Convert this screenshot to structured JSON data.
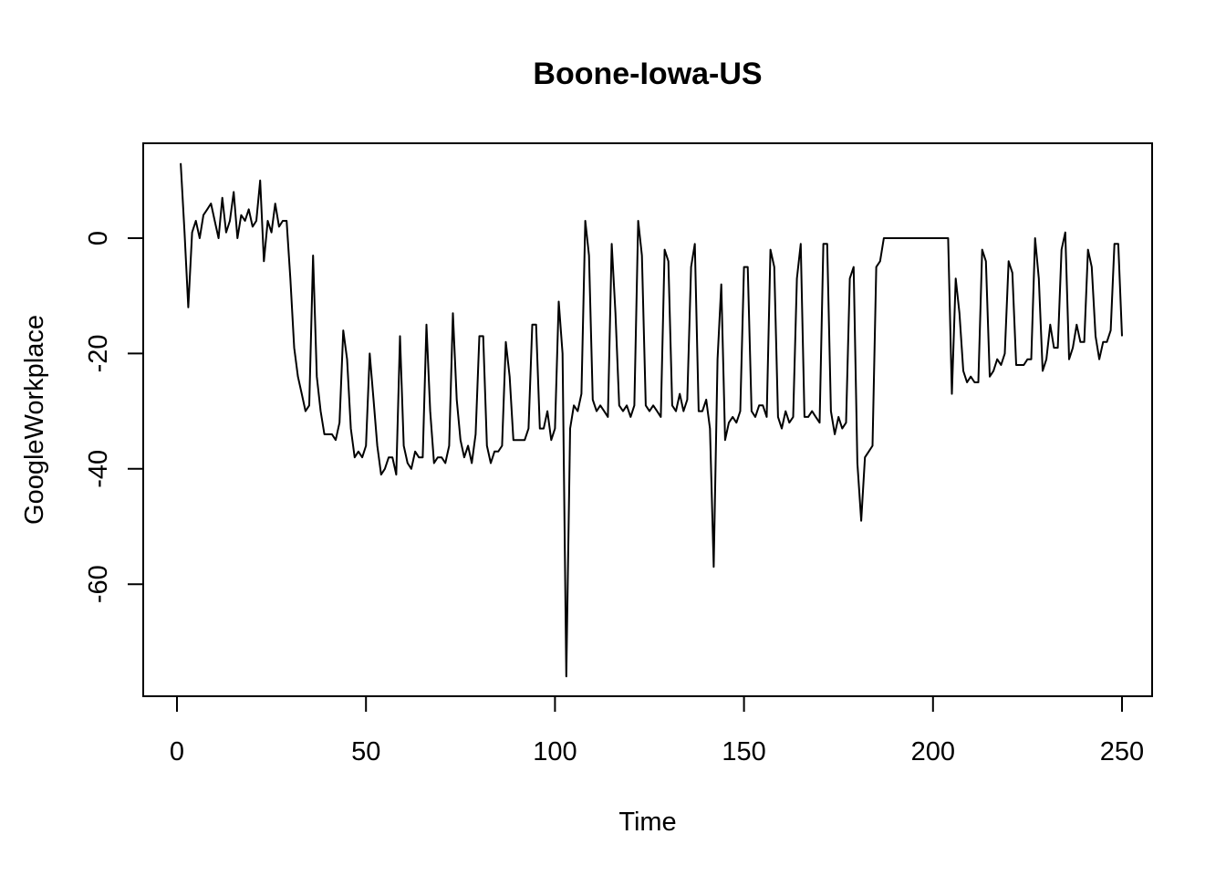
{
  "chart_data": {
    "type": "line",
    "title": "Boone-Iowa-US",
    "xlabel": "Time",
    "ylabel": "GoogleWorkplace",
    "xlim": [
      1,
      248
    ],
    "ylim": [
      -76,
      13
    ],
    "x_ticks": [
      0,
      50,
      100,
      150,
      200,
      250
    ],
    "y_ticks": [
      0,
      -20,
      -40,
      -60
    ],
    "x_tick_labels": [
      "0",
      "50",
      "100",
      "150",
      "200",
      "250"
    ],
    "y_tick_labels": [
      "0",
      "-20",
      "-40",
      "-60"
    ],
    "grid": false,
    "legend": "none",
    "series": [
      {
        "x_start": 1,
        "values": [
          13,
          1,
          -12,
          1,
          3,
          0,
          4,
          5,
          6,
          3,
          0,
          7,
          1,
          3,
          8,
          0,
          4,
          3,
          5,
          2,
          3,
          10,
          -4,
          3,
          1,
          6,
          2,
          3,
          3,
          -7,
          -19,
          -24,
          -27,
          -30,
          -29,
          -3,
          -24,
          -30,
          -34,
          -34,
          -34,
          -35,
          -32,
          -16,
          -21,
          -33,
          -38,
          -37,
          -38,
          -36,
          -20,
          -28,
          -36,
          -41,
          -40,
          -38,
          -38,
          -41,
          -17,
          -36,
          -39,
          -40,
          -37,
          -38,
          -38,
          -15,
          -30,
          -39,
          -38,
          -38,
          -39,
          -36,
          -13,
          -28,
          -35,
          -38,
          -36,
          -39,
          -34,
          -17,
          -17,
          -36,
          -39,
          -37,
          -37,
          -36,
          -18,
          -24,
          -35,
          -35,
          -35,
          -35,
          -33,
          -15,
          -15,
          -33,
          -33,
          -30,
          -35,
          -33,
          -11,
          -20,
          -76,
          -33,
          -29,
          -30,
          -27,
          3,
          -3,
          -28,
          -30,
          -29,
          -30,
          -31,
          -1,
          -13,
          -29,
          -30,
          -29,
          -31,
          -29,
          3,
          -3,
          -29,
          -30,
          -29,
          -30,
          -31,
          -2,
          -4,
          -29,
          -30,
          -27,
          -30,
          -28,
          -5,
          -1,
          -30,
          -30,
          -28,
          -33,
          -57,
          -21,
          -8,
          -35,
          -32,
          -31,
          -32,
          -30,
          -5,
          -5,
          -30,
          -31,
          -29,
          -29,
          -31,
          -2,
          -5,
          -31,
          -33,
          -30,
          -32,
          -31,
          -7,
          -1,
          -31,
          -31,
          -30,
          -31,
          -32,
          -1,
          -1,
          -30,
          -34,
          -31,
          -33,
          -32,
          -7,
          -5,
          -39,
          -49,
          -38,
          -37,
          -36,
          -5,
          -4,
          0,
          0,
          0,
          0,
          0,
          0,
          0,
          0,
          0,
          0,
          0,
          0,
          0,
          0,
          0,
          0,
          0,
          0,
          -27,
          -7,
          -13,
          -23,
          -25,
          -24,
          -25,
          -25,
          -2,
          -4,
          -24,
          -23,
          -21,
          -22,
          -20,
          -4,
          -6,
          -22,
          -22,
          -22,
          -21,
          -21,
          0,
          -7,
          -23,
          -21,
          -15,
          -19,
          -19,
          -2,
          1,
          -21,
          -19,
          -15,
          -18,
          -18,
          -2,
          -5,
          -17,
          -21,
          -18,
          -18,
          -16,
          -1,
          -1,
          -17
        ]
      }
    ]
  }
}
